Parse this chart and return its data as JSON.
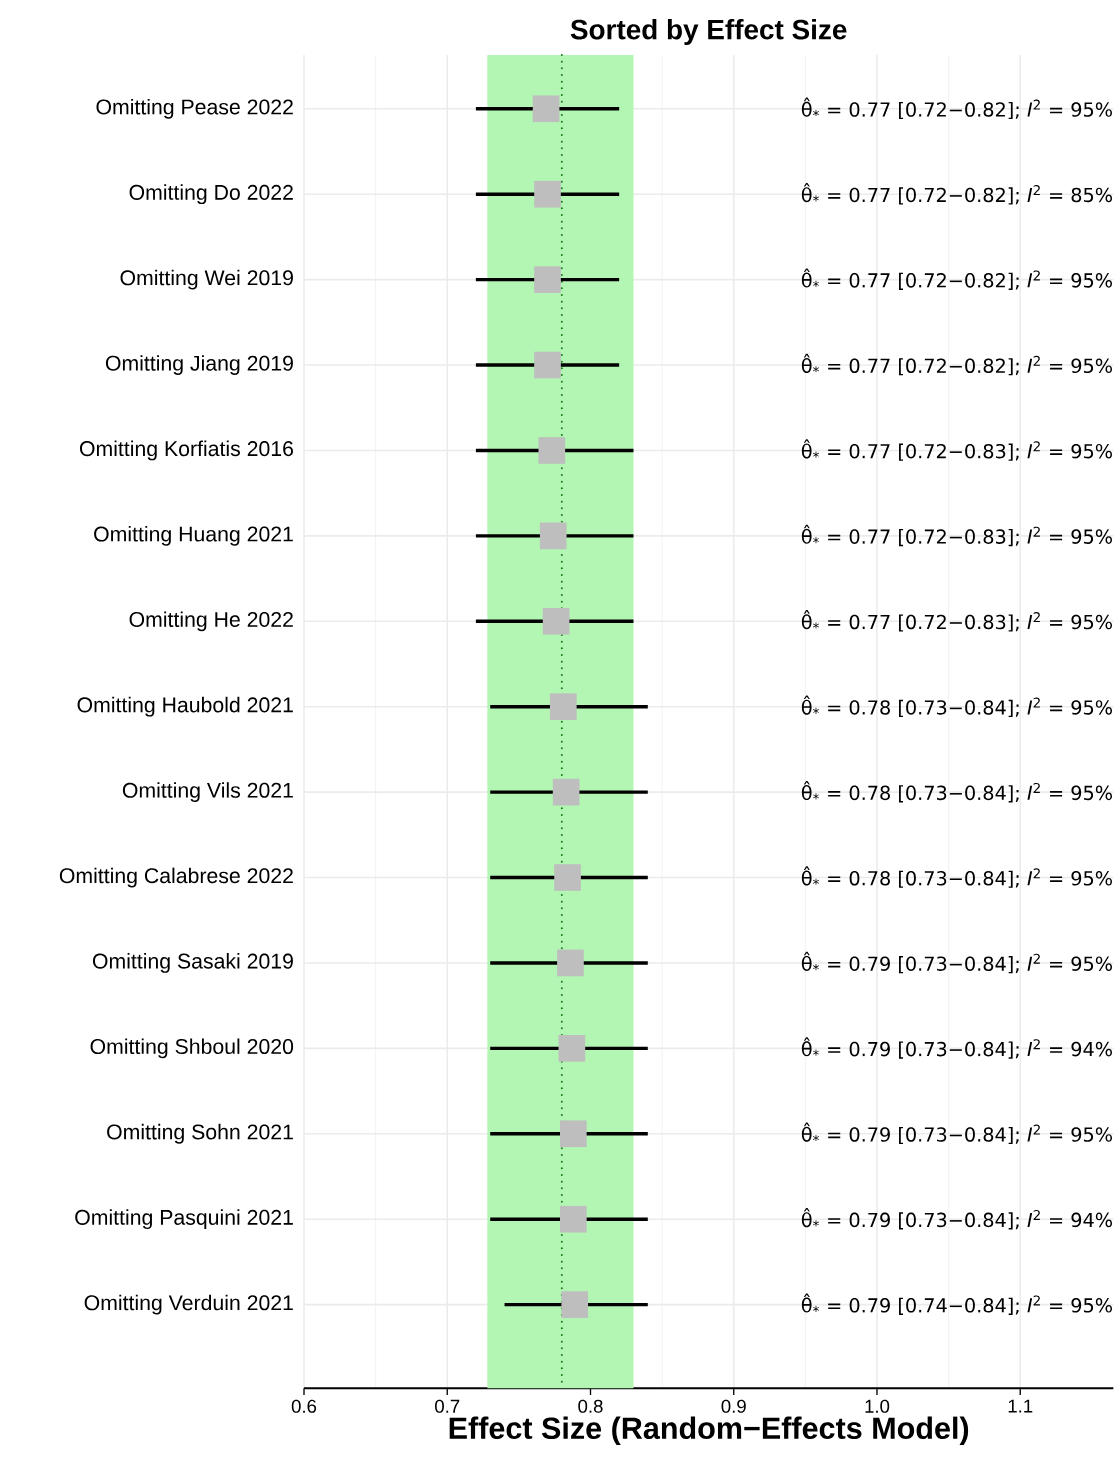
{
  "chart_data": {
    "type": "scatter",
    "title": "Sorted by Effect Size",
    "xlabel": "Effect Size (Random−Effects Model)",
    "orientation": "horizontal",
    "categories": [
      "Omitting Pease 2022",
      "Omitting Do 2022",
      "Omitting Wei 2019",
      "Omitting Jiang 2019",
      "Omitting Korfiatis 2016",
      "Omitting Huang 2021",
      "Omitting He 2022",
      "Omitting Haubold 2021",
      "Omitting Vils 2021",
      "Omitting Calabrese 2022",
      "Omitting Sasaki 2019",
      "Omitting Shboul 2020",
      "Omitting Sohn 2021",
      "Omitting Pasquini 2021",
      "Omitting Verduin 2021"
    ],
    "values": [
      0.769,
      0.77,
      0.77,
      0.77,
      0.773,
      0.774,
      0.776,
      0.781,
      0.783,
      0.784,
      0.786,
      0.787,
      0.788,
      0.788,
      0.789
    ],
    "errors": [
      [
        0.72,
        0.82
      ],
      [
        0.72,
        0.82
      ],
      [
        0.72,
        0.82
      ],
      [
        0.72,
        0.82
      ],
      [
        0.72,
        0.83
      ],
      [
        0.72,
        0.83
      ],
      [
        0.72,
        0.83
      ],
      [
        0.73,
        0.84
      ],
      [
        0.73,
        0.84
      ],
      [
        0.73,
        0.84
      ],
      [
        0.73,
        0.84
      ],
      [
        0.73,
        0.84
      ],
      [
        0.73,
        0.84
      ],
      [
        0.73,
        0.84
      ],
      [
        0.74,
        0.84
      ]
    ],
    "annotations": [
      "θ̂$_{*}$ = 0.77 [0.72−0.82]; *I*$^{2}$ = 95%",
      "θ̂$_{*}$ = 0.77 [0.72−0.82]; *I*$^{2}$ = 85%",
      "θ̂$_{*}$ = 0.77 [0.72−0.82]; *I*$^{2}$ = 95%",
      "θ̂$_{*}$ = 0.77 [0.72−0.82]; *I*$^{2}$ = 95%",
      "θ̂$_{*}$ = 0.77 [0.72−0.83]; *I*$^{2}$ = 95%",
      "θ̂$_{*}$ = 0.77 [0.72−0.83]; *I*$^{2}$ = 95%",
      "θ̂$_{*}$ = 0.77 [0.72−0.83]; *I*$^{2}$ = 95%",
      "θ̂$_{*}$ = 0.78 [0.73−0.84]; *I*$^{2}$ = 95%",
      "θ̂$_{*}$ = 0.78 [0.73−0.84]; *I*$^{2}$ = 95%",
      "θ̂$_{*}$ = 0.78 [0.73−0.84]; *I*$^{2}$ = 95%",
      "θ̂$_{*}$ = 0.79 [0.73−0.84]; *I*$^{2}$ = 95%",
      "θ̂$_{*}$ = 0.79 [0.73−0.84]; *I*$^{2}$ = 94%",
      "θ̂$_{*}$ = 0.79 [0.73−0.84]; *I*$^{2}$ = 95%",
      "θ̂$_{*}$ = 0.79 [0.73−0.84]; *I*$^{2}$ = 94%",
      "θ̂$_{*}$ = 0.79 [0.74−0.84]; *I*$^{2}$ = 95%"
    ],
    "color": "#bebebe",
    "marker": "square",
    "grid": "x",
    "xlim": [
      0.6,
      1.165
    ],
    "xticks": [
      0.6,
      0.7,
      0.8,
      0.9,
      {
        "value": 1,
        "label": "1.0"
      },
      1.1
    ],
    "bands": [
      {
        "axis": "x",
        "from": 0.728,
        "to": 0.83,
        "color": "#b3f5b3"
      }
    ],
    "ref_lines": [
      {
        "axis": "x",
        "value": 0.78,
        "color": "#1b7a1b",
        "line_style": "dotted"
      }
    ]
  }
}
